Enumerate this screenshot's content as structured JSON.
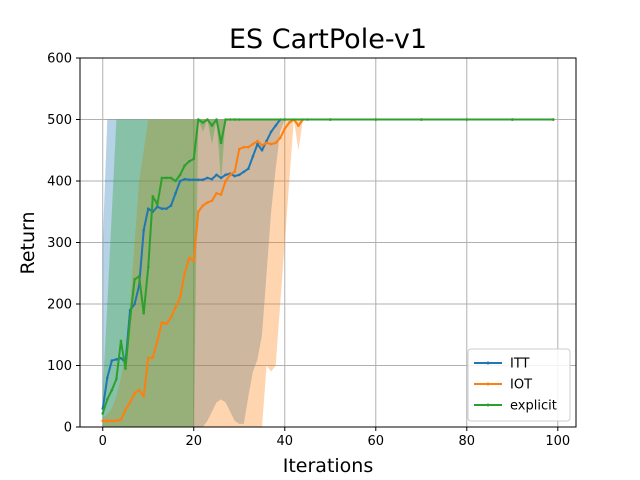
{
  "chart_data": {
    "type": "line",
    "title": "ES CartPole-v1",
    "xlabel": "Iterations",
    "ylabel": "Return",
    "xlim": [
      -5,
      104
    ],
    "ylim": [
      0,
      600
    ],
    "xticks": [
      0,
      20,
      40,
      60,
      80,
      100
    ],
    "yticks": [
      0,
      100,
      200,
      300,
      400,
      500,
      600
    ],
    "grid": true,
    "legend_position": "lower-right",
    "series": [
      {
        "name": "ITT",
        "color": "#1f77b4",
        "x": [
          0,
          1,
          2,
          3,
          4,
          5,
          6,
          7,
          8,
          9,
          10,
          11,
          12,
          13,
          14,
          15,
          16,
          17,
          18,
          19,
          20,
          21,
          22,
          23,
          24,
          25,
          26,
          27,
          28,
          29,
          30,
          31,
          32,
          33,
          34,
          35,
          36,
          37,
          38,
          39,
          40,
          45,
          50,
          60,
          70,
          80,
          90,
          99
        ],
        "y": [
          30,
          80,
          108,
          110,
          112,
          105,
          190,
          200,
          230,
          320,
          355,
          350,
          358,
          355,
          355,
          360,
          380,
          400,
          403,
          402,
          402,
          402,
          402,
          405,
          403,
          410,
          405,
          410,
          412,
          408,
          410,
          415,
          420,
          440,
          460,
          450,
          465,
          480,
          490,
          500,
          500,
          500,
          500,
          500,
          500,
          500,
          500,
          500
        ],
        "lower": [
          0,
          0,
          0,
          0,
          0,
          0,
          0,
          0,
          0,
          0,
          0,
          0,
          0,
          0,
          0,
          0,
          0,
          0,
          0,
          0,
          0,
          0,
          0,
          10,
          25,
          40,
          45,
          40,
          25,
          10,
          5,
          5,
          50,
          90,
          110,
          150,
          250,
          350,
          420,
          480,
          500,
          500,
          500,
          500,
          500,
          500,
          500,
          500
        ],
        "upper": [
          300,
          500,
          500,
          500,
          500,
          500,
          500,
          500,
          500,
          500,
          500,
          500,
          500,
          500,
          500,
          500,
          500,
          500,
          500,
          500,
          500,
          500,
          500,
          500,
          500,
          500,
          500,
          500,
          500,
          500,
          500,
          500,
          500,
          500,
          500,
          500,
          500,
          500,
          500,
          500,
          500,
          500,
          500,
          500,
          500,
          500,
          500,
          500
        ]
      },
      {
        "name": "IOT",
        "color": "#ff7f0e",
        "x": [
          0,
          1,
          2,
          3,
          4,
          5,
          6,
          7,
          8,
          9,
          10,
          11,
          12,
          13,
          14,
          15,
          16,
          17,
          18,
          19,
          20,
          21,
          22,
          23,
          24,
          25,
          26,
          27,
          28,
          29,
          30,
          31,
          32,
          33,
          34,
          35,
          36,
          37,
          38,
          39,
          40,
          41,
          42,
          43,
          44,
          50,
          60,
          70,
          80,
          90,
          99
        ],
        "y": [
          10,
          10,
          10,
          10,
          12,
          28,
          40,
          55,
          60,
          50,
          112,
          113,
          140,
          170,
          168,
          178,
          195,
          210,
          250,
          275,
          270,
          350,
          360,
          365,
          368,
          380,
          378,
          400,
          410,
          415,
          452,
          455,
          455,
          460,
          465,
          458,
          462,
          460,
          462,
          470,
          485,
          495,
          500,
          490,
          500,
          500,
          500,
          500,
          500,
          500,
          500
        ],
        "lower": [
          0,
          0,
          0,
          0,
          0,
          0,
          0,
          0,
          0,
          0,
          0,
          0,
          0,
          0,
          0,
          0,
          0,
          0,
          0,
          0,
          0,
          0,
          0,
          0,
          0,
          0,
          0,
          0,
          0,
          0,
          0,
          0,
          0,
          0,
          0,
          0,
          100,
          90,
          100,
          200,
          300,
          400,
          500,
          450,
          500,
          500,
          500,
          500,
          500,
          500,
          500
        ],
        "upper": [
          15,
          20,
          30,
          50,
          80,
          120,
          200,
          300,
          400,
          450,
          500,
          500,
          500,
          500,
          500,
          500,
          500,
          500,
          500,
          500,
          500,
          500,
          500,
          500,
          500,
          500,
          500,
          500,
          500,
          500,
          500,
          500,
          500,
          500,
          500,
          500,
          500,
          500,
          500,
          500,
          500,
          500,
          500,
          500,
          500,
          500,
          500,
          500,
          500,
          500,
          500
        ]
      },
      {
        "name": "explicit",
        "color": "#2ca02c",
        "x": [
          0,
          1,
          2,
          3,
          4,
          5,
          6,
          7,
          8,
          9,
          10,
          11,
          12,
          13,
          14,
          15,
          16,
          17,
          18,
          19,
          20,
          21,
          22,
          23,
          24,
          25,
          26,
          27,
          28,
          29,
          30,
          40,
          50,
          60,
          70,
          80,
          90,
          99
        ],
        "y": [
          22,
          45,
          60,
          78,
          140,
          95,
          175,
          240,
          245,
          185,
          260,
          375,
          362,
          405,
          405,
          405,
          400,
          410,
          425,
          432,
          436,
          500,
          495,
          500,
          490,
          500,
          462,
          500,
          500,
          500,
          500,
          500,
          500,
          500,
          500,
          500,
          500,
          500
        ],
        "lower": [
          0,
          0,
          0,
          0,
          0,
          0,
          0,
          0,
          0,
          0,
          0,
          0,
          0,
          0,
          0,
          0,
          0,
          0,
          0,
          0,
          0,
          500,
          480,
          500,
          460,
          500,
          400,
          500,
          500,
          500,
          500,
          500,
          500,
          500,
          500,
          500,
          500,
          500
        ],
        "upper": [
          60,
          200,
          350,
          500,
          500,
          500,
          500,
          500,
          500,
          500,
          500,
          500,
          500,
          500,
          500,
          500,
          500,
          500,
          500,
          500,
          500,
          500,
          500,
          500,
          500,
          500,
          500,
          500,
          500,
          500,
          500,
          500,
          500,
          500,
          500,
          500,
          500,
          500
        ]
      }
    ]
  }
}
